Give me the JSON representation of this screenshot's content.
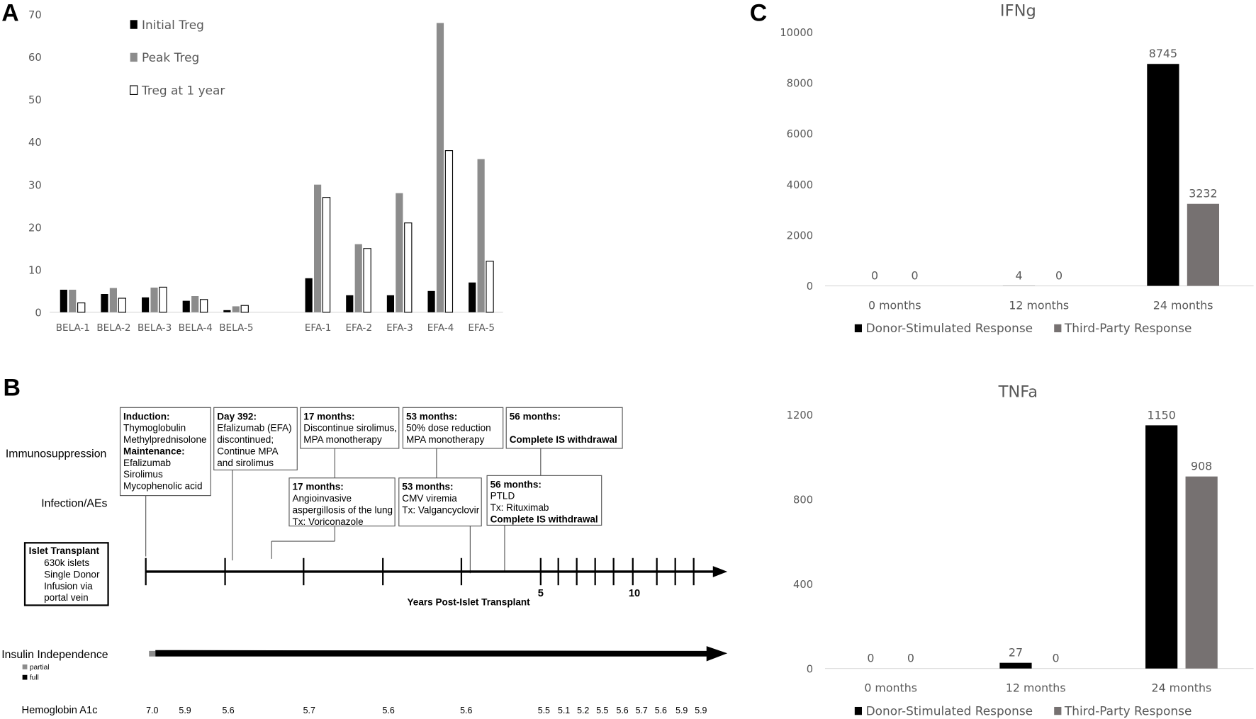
{
  "panels": {
    "a": "A",
    "b": "B",
    "c": "C"
  },
  "chart_data": [
    {
      "type": "bar",
      "id": "treg",
      "title": "",
      "categories": [
        "BELA-1",
        "BELA-2",
        "BELA-3",
        "BELA-4",
        "BELA-5",
        "EFA-1",
        "EFA-2",
        "EFA-3",
        "EFA-4",
        "EFA-5"
      ],
      "series": [
        {
          "name": "Initial Treg",
          "color": "#000000",
          "values": [
            5.3,
            4.3,
            3.5,
            2.7,
            0.5,
            8,
            4,
            4,
            5,
            7
          ]
        },
        {
          "name": "Peak Treg",
          "color": "#8c8c8c",
          "values": [
            5.3,
            5.7,
            5.8,
            3.8,
            1.4,
            30,
            16,
            28,
            68,
            36
          ]
        },
        {
          "name": "Treg at 1 year",
          "color": "#ffffff",
          "values": [
            2.2,
            3.3,
            5.9,
            3.0,
            1.6,
            27,
            15,
            21,
            38,
            12
          ]
        }
      ],
      "yticks": [
        "0",
        "10",
        "20",
        "30",
        "40",
        "50",
        "60",
        "70"
      ],
      "ylim": [
        0,
        70
      ],
      "legend": "top-left",
      "grid": false
    },
    {
      "type": "bar",
      "id": "ifng",
      "title": "IFNg",
      "categories": [
        "0 months",
        "12 months",
        "24 months"
      ],
      "series": [
        {
          "name": "Donor-Stimulated Response",
          "color": "#000000",
          "values": [
            0,
            4,
            8745
          ],
          "labels": [
            "0",
            "4",
            "8745"
          ]
        },
        {
          "name": "Third-Party Response",
          "color": "#767171",
          "values": [
            0,
            0,
            3232
          ],
          "labels": [
            "0",
            "0",
            "3232"
          ]
        }
      ],
      "yticks": [
        "0",
        "2000",
        "4000",
        "6000",
        "8000",
        "10000"
      ],
      "ylim": [
        0,
        10000
      ],
      "legend": "bottom",
      "grid": false
    },
    {
      "type": "bar",
      "id": "tnfa",
      "title": "TNFa",
      "categories": [
        "0 months",
        "12 months",
        "24 months"
      ],
      "series": [
        {
          "name": "Donor-Stimulated Response",
          "color": "#000000",
          "values": [
            0,
            27,
            1150
          ],
          "labels": [
            "0",
            "27",
            "1150"
          ]
        },
        {
          "name": "Third-Party Response",
          "color": "#767171",
          "values": [
            0,
            0,
            908
          ],
          "labels": [
            "0",
            "0",
            "908"
          ]
        }
      ],
      "yticks": [
        "0",
        "400",
        "800",
        "1200"
      ],
      "ylim": [
        0,
        1200
      ],
      "legend": "bottom",
      "grid": false
    }
  ],
  "timeline": {
    "row_labels": {
      "immunosuppression": "Immunosuppression",
      "infection": "Infection/AEs",
      "insulin": "Insulin Independence",
      "hba1c": "Hemoglobin A1c"
    },
    "immunosuppression_boxes": [
      {
        "lines": [
          {
            "t": "Induction:",
            "b": true
          },
          {
            "t": "Thymoglobulin"
          },
          {
            "t": "Methylprednisolone"
          },
          {
            "t": "Maintenance:",
            "b": true
          },
          {
            "t": "Efalizumab"
          },
          {
            "t": "Sirolimus"
          },
          {
            "t": "Mycophenolic acid"
          }
        ]
      },
      {
        "lines": [
          {
            "t": "Day 392:",
            "b": true
          },
          {
            "t": "Efalizumab (EFA)"
          },
          {
            "t": "discontinued;"
          },
          {
            "t": "Continue MPA"
          },
          {
            "t": "and sirolimus"
          }
        ]
      },
      {
        "lines": [
          {
            "t": "17 months:",
            "b": true
          },
          {
            "t": "Discontinue sirolimus,"
          },
          {
            "t": "MPA monotherapy"
          }
        ]
      },
      {
        "lines": [
          {
            "t": "53 months:",
            "b": true
          },
          {
            "t": "50% dose reduction"
          },
          {
            "t": "MPA monotherapy"
          }
        ]
      },
      {
        "lines": [
          {
            "t": "56 months:",
            "b": true
          },
          {
            "t": ""
          },
          {
            "t": "Complete IS withdrawal",
            "b": true
          }
        ]
      }
    ],
    "infection_boxes": [
      {
        "lines": [
          {
            "t": "17 months:",
            "b": true
          },
          {
            "t": "Angioinvasive"
          },
          {
            "t": "aspergillosis of the lung"
          },
          {
            "t": "Tx: Voriconazole"
          }
        ]
      },
      {
        "lines": [
          {
            "t": "53 months:",
            "b": true
          },
          {
            "t": "CMV viremia"
          },
          {
            "t": "Tx: Valgancyclovir"
          }
        ]
      },
      {
        "lines": [
          {
            "t": "56 months:",
            "b": true
          },
          {
            "t": "PTLD"
          },
          {
            "t": "Tx: Rituximab"
          },
          {
            "t": "Complete IS withdrawal",
            "b": true
          }
        ]
      }
    ],
    "transplant_box": {
      "title": "Islet Transplant",
      "lines": [
        "630k islets",
        "Single Donor",
        "Infusion via",
        "portal vein"
      ]
    },
    "axis_labels": {
      "five": "5",
      "ten": "10",
      "title": "Years Post-Islet Transplant"
    },
    "insulin_legend": {
      "partial": "partial",
      "full": "full",
      "partial_color": "#8c8c8c",
      "full_color": "#000000"
    },
    "hba1c_values": [
      "7.0",
      "5.9",
      "5.6",
      "5.7",
      "5.6",
      "5.6",
      "5.5",
      "5.1",
      "5.2",
      "5.5",
      "5.6",
      "5.7",
      "5.6",
      "5.9",
      "5.9"
    ]
  }
}
